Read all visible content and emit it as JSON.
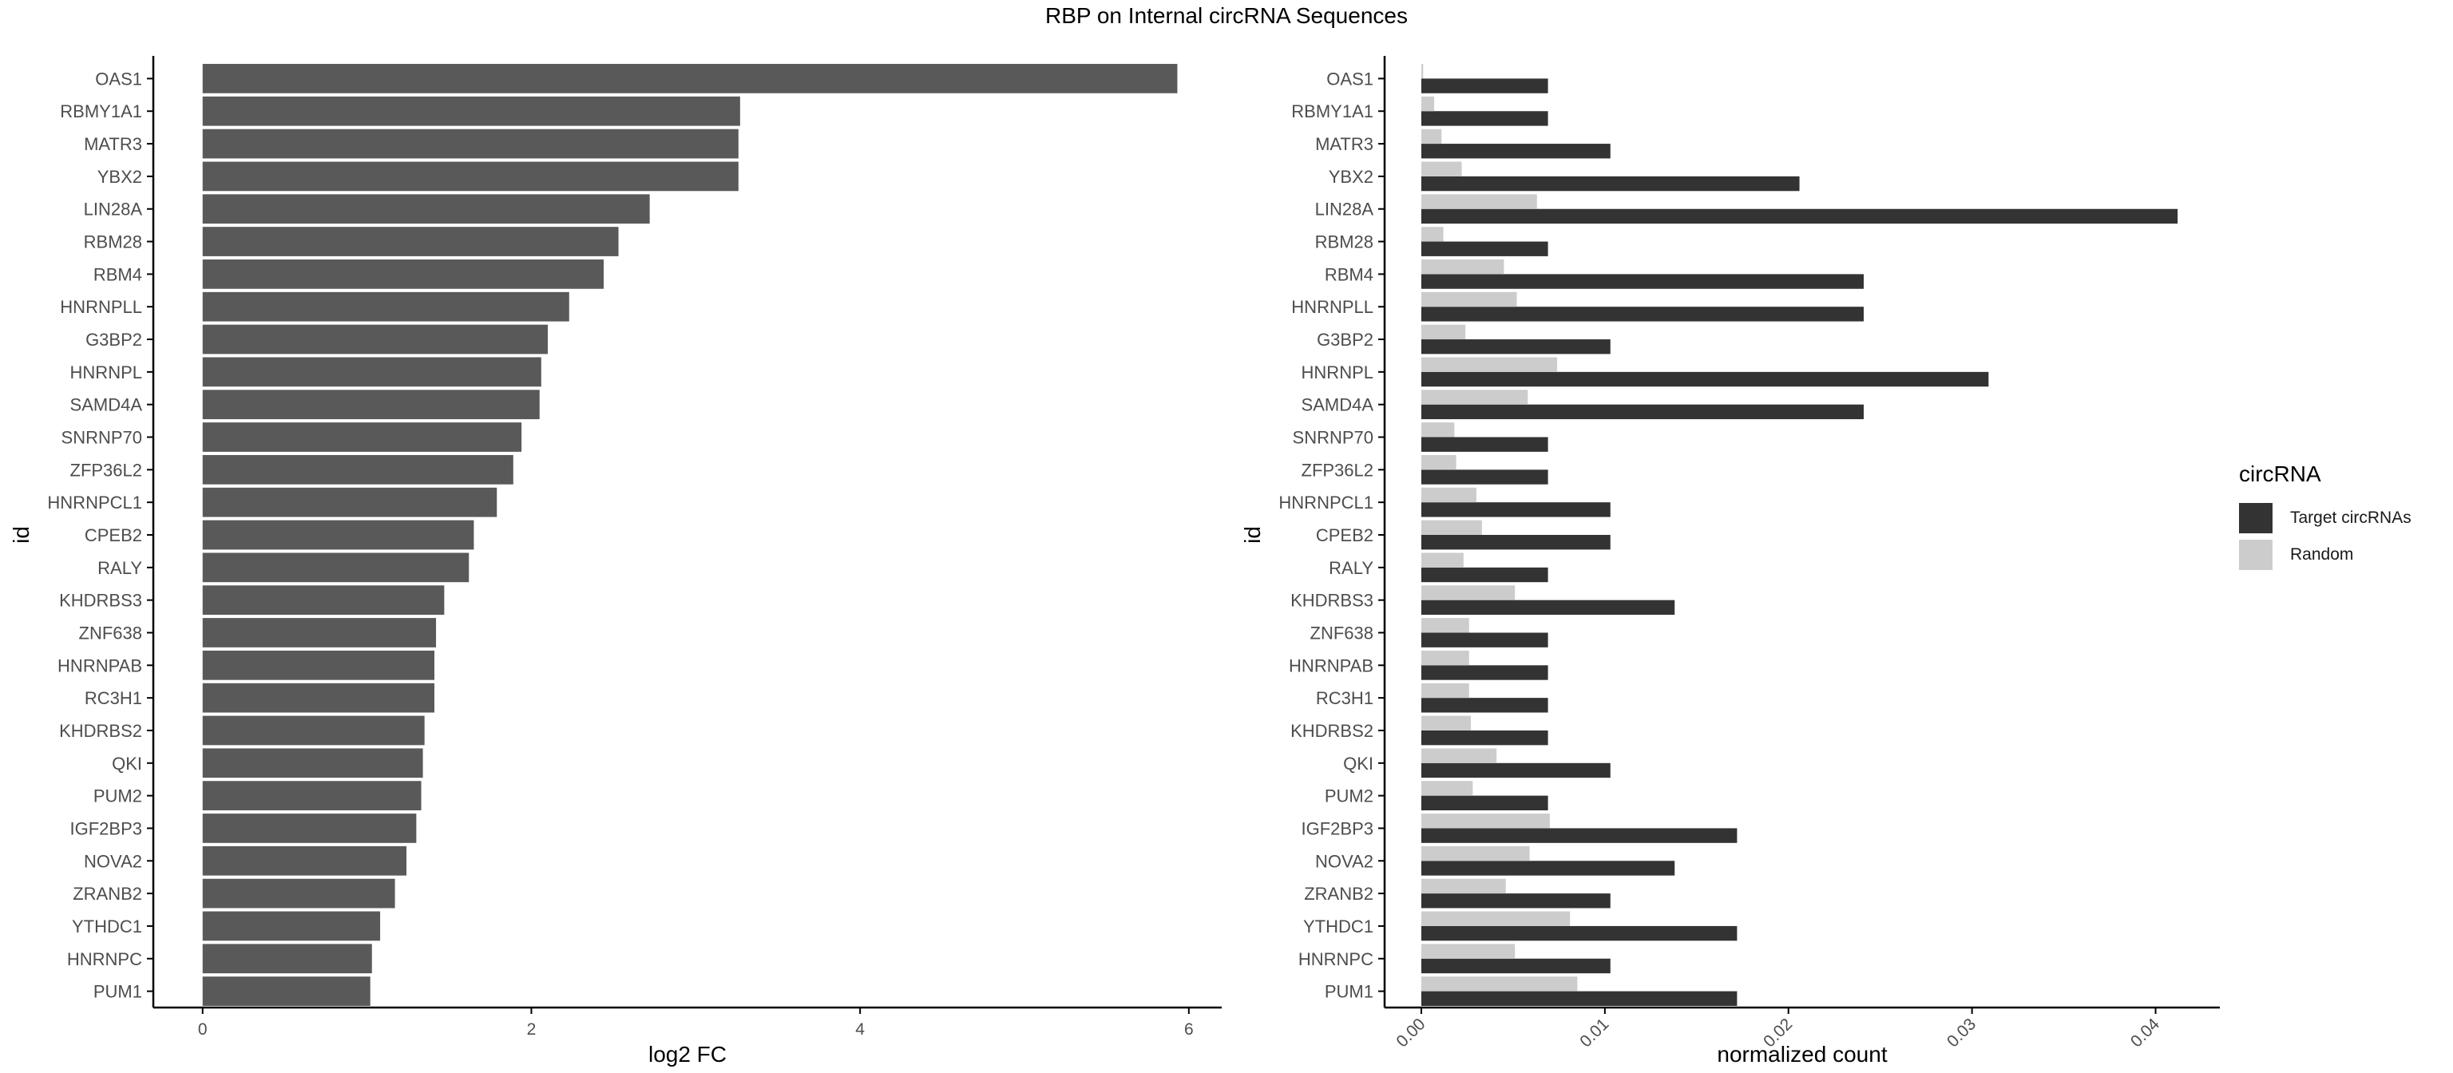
{
  "figure_title": "RBP on Internal circRNA Sequences",
  "colors": {
    "bar_left": "#595959",
    "target": "#333333",
    "random": "#cccccc",
    "axis": "#000000",
    "tick_text": "#4d4d4d"
  },
  "legend": {
    "title": "circRNA",
    "items": [
      {
        "label": "Target circRNAs",
        "color": "#333333"
      },
      {
        "label": "Random",
        "color": "#cccccc"
      }
    ]
  },
  "chart_data": [
    {
      "type": "bar",
      "orientation": "horizontal",
      "title": "",
      "xlabel": "log2 FC",
      "ylabel": "id",
      "xlim": [
        -0.3,
        6.2
      ],
      "xticks": [
        0,
        2,
        4,
        6
      ],
      "grid": false,
      "categories": [
        "OAS1",
        "RBMY1A1",
        "MATR3",
        "YBX2",
        "LIN28A",
        "RBM28",
        "RBM4",
        "HNRNPLL",
        "G3BP2",
        "HNRNPL",
        "SAMD4A",
        "SNRNP70",
        "ZFP36L2",
        "HNRNPCL1",
        "CPEB2",
        "RALY",
        "KHDRBS3",
        "ZNF638",
        "HNRNPAB",
        "RC3H1",
        "KHDRBS2",
        "QKI",
        "PUM2",
        "IGF2BP3",
        "NOVA2",
        "ZRANB2",
        "YTHDC1",
        "HNRNPC",
        "PUM1"
      ],
      "values": [
        5.93,
        3.27,
        3.26,
        3.26,
        2.72,
        2.53,
        2.44,
        2.23,
        2.1,
        2.06,
        2.05,
        1.94,
        1.89,
        1.79,
        1.65,
        1.62,
        1.47,
        1.42,
        1.41,
        1.41,
        1.35,
        1.34,
        1.33,
        1.3,
        1.24,
        1.17,
        1.08,
        1.03,
        1.02
      ]
    },
    {
      "type": "bar",
      "orientation": "horizontal",
      "title": "",
      "xlabel": "normalized count",
      "ylabel": "id",
      "xlim": [
        -0.002,
        0.0435
      ],
      "xticks": [
        0.0,
        0.01,
        0.02,
        0.03,
        0.04
      ],
      "xtick_labels": [
        "0.00",
        "0.01",
        "0.02",
        "0.03",
        "0.04"
      ],
      "grid": false,
      "legend_position": "right",
      "categories": [
        "OAS1",
        "RBMY1A1",
        "MATR3",
        "YBX2",
        "LIN28A",
        "RBM28",
        "RBM4",
        "HNRNPLL",
        "G3BP2",
        "HNRNPL",
        "SAMD4A",
        "SNRNP70",
        "ZFP36L2",
        "HNRNPCL1",
        "CPEB2",
        "RALY",
        "KHDRBS3",
        "ZNF638",
        "HNRNPAB",
        "RC3H1",
        "KHDRBS2",
        "QKI",
        "PUM2",
        "IGF2BP3",
        "NOVA2",
        "ZRANB2",
        "YTHDC1",
        "HNRNPC",
        "PUM1"
      ],
      "series": [
        {
          "name": "Target circRNAs",
          "values": [
            0.0069,
            0.0069,
            0.0103,
            0.0206,
            0.0412,
            0.0069,
            0.0241,
            0.0241,
            0.0103,
            0.0309,
            0.0241,
            0.0069,
            0.0069,
            0.0103,
            0.0103,
            0.0069,
            0.0138,
            0.0069,
            0.0069,
            0.0069,
            0.0069,
            0.0103,
            0.0069,
            0.0172,
            0.0138,
            0.0103,
            0.0172,
            0.0103,
            0.0172
          ]
        },
        {
          "name": "Random",
          "values": [
            0.0001,
            0.0007,
            0.0011,
            0.0022,
            0.0063,
            0.0012,
            0.0045,
            0.0052,
            0.0024,
            0.0074,
            0.0058,
            0.0018,
            0.0019,
            0.003,
            0.0033,
            0.0023,
            0.0051,
            0.0026,
            0.0026,
            0.0026,
            0.0027,
            0.0041,
            0.0028,
            0.007,
            0.0059,
            0.0046,
            0.0081,
            0.0051,
            0.0085
          ]
        }
      ]
    }
  ]
}
